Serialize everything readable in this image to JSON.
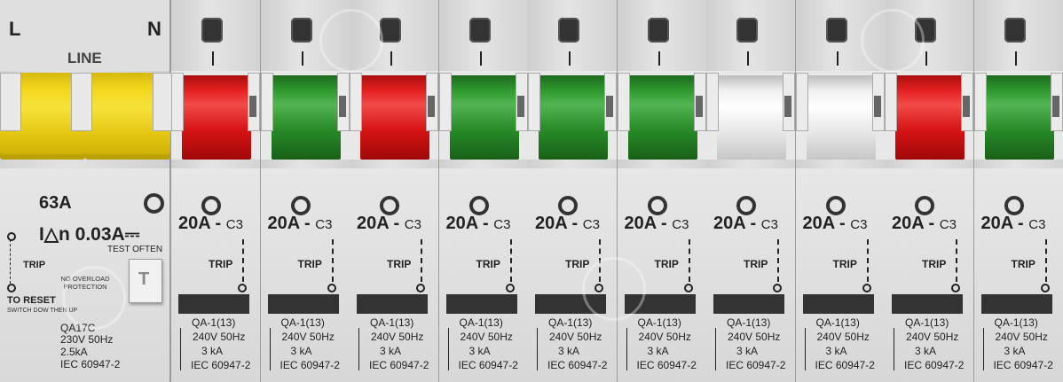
{
  "rcd": {
    "left_label": "L",
    "right_label": "N",
    "line_label": "LINE",
    "toggle_color": "#f1d51b",
    "current": "63A",
    "residual": "I△n 0.03A⎓",
    "test_label": "TEST OFTEN",
    "test_button_symbol": "T",
    "trip_label": "TRIP",
    "no_overload": "NO OVERLOAD PROTECTION",
    "reset_label": "TO RESET",
    "reset_hint": "SWITCH DOW THEN UP",
    "model": "QA17C",
    "voltage": "230V 50Hz",
    "breaking": "2.5kA",
    "standard": "IEC 60947-2"
  },
  "mcb_common": {
    "rating": "20A -",
    "curve": "C3",
    "trip_label": "TRIP",
    "model": "QA-1(13)",
    "voltage": "240V 50Hz",
    "breaking": "3 kA",
    "standard": "IEC 60947-2",
    "on_mark": "I"
  },
  "breakers": [
    {
      "color": "red",
      "hex": "#e52121"
    },
    {
      "color": "green",
      "hex": "#2f9a2f"
    },
    {
      "color": "red",
      "hex": "#e52121"
    },
    {
      "color": "green",
      "hex": "#2f9a2f"
    },
    {
      "color": "green",
      "hex": "#2f9a2f"
    },
    {
      "color": "green",
      "hex": "#2f9a2f"
    },
    {
      "color": "white",
      "hex": "#ffffff"
    },
    {
      "color": "white",
      "hex": "#ffffff"
    },
    {
      "color": "red",
      "hex": "#e52121"
    },
    {
      "color": "green",
      "hex": "#2f9a2f"
    }
  ]
}
